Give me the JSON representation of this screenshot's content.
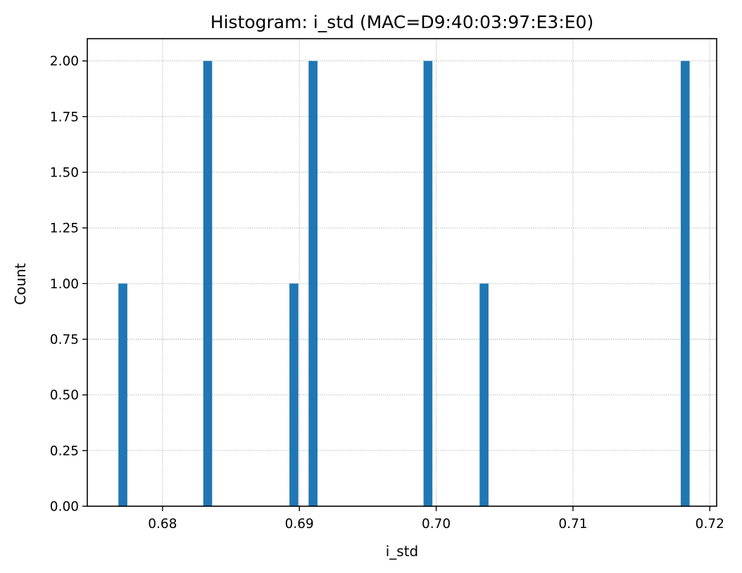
{
  "chart_data": {
    "type": "bar",
    "title": "Histogram: i_std (MAC=D9:40:03:97:E3:E0)",
    "xlabel": "i_std",
    "ylabel": "Count",
    "xlim": [
      0.6745,
      0.7205
    ],
    "ylim": [
      0,
      2.1
    ],
    "bin_width": 0.00065,
    "x_ticks": [
      0.68,
      0.69,
      0.7,
      0.71,
      0.72
    ],
    "x_tick_labels": [
      "0.68",
      "0.69",
      "0.70",
      "0.71",
      "0.72"
    ],
    "y_ticks": [
      0,
      0.25,
      0.5,
      0.75,
      1.0,
      1.25,
      1.5,
      1.75,
      2.0
    ],
    "y_tick_labels": [
      "0.00",
      "0.25",
      "0.50",
      "0.75",
      "1.00",
      "1.25",
      "1.50",
      "1.75",
      "2.00"
    ],
    "bins": [
      {
        "x": 0.6771,
        "count": 1
      },
      {
        "x": 0.6833,
        "count": 2
      },
      {
        "x": 0.6896,
        "count": 1
      },
      {
        "x": 0.691,
        "count": 2
      },
      {
        "x": 0.6994,
        "count": 2
      },
      {
        "x": 0.7035,
        "count": 1
      },
      {
        "x": 0.7182,
        "count": 2
      }
    ],
    "bar_color": "#1f77b4",
    "grid": true,
    "grid_color": "#b0b0b0",
    "legend": "none"
  }
}
